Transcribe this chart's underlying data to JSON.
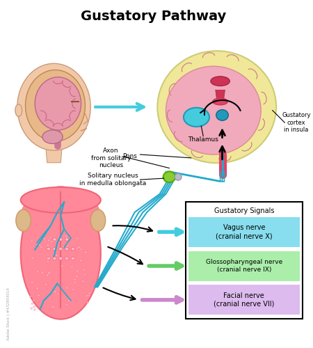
{
  "title": "Gustatory Pathway",
  "title_fontsize": 14,
  "background_color": "#ffffff",
  "labels": {
    "axon": "Axon\nfrom solitary\nnucleus",
    "pons": "Pons",
    "solitary": "Solitary nucleus\nin medulla oblongata",
    "thalamus": "Thalamus",
    "gustatory_cortex": "Gustatory\ncortex\nin insula",
    "gustatory_signals": "Gustatory Signals",
    "vagus": "Vagus nerve\n(cranial nerve X)",
    "glosso": "Glossopharyngeal nerve\n(cranial nerve IX)",
    "facial": "Facial nerve\n(cranial nerve VII)"
  },
  "colors": {
    "skin": "#f2c9a8",
    "skull": "#e8b888",
    "brain_pink": "#e89aaa",
    "brain_fold": "#cc6688",
    "brain_yellow": "#f0e898",
    "brain_cs_pink": "#f0aabb",
    "thalamus_blue": "#44ccdd",
    "thalamus_dark": "#2299bb",
    "red_structure": "#cc3355",
    "green_nucleus": "#88cc33",
    "cyan_nerve": "#22aacc",
    "light_green": "#aaddaa",
    "light_purple": "#ddaaee",
    "light_cyan": "#aaddee",
    "vagus_box": "#88ddee",
    "glosso_box": "#aaeeaa",
    "facial_box": "#ddbbee",
    "tongue_pink": "#ff8899",
    "tongue_mid": "#ee6677",
    "tongue_tan": "#ddb888",
    "black": "#000000",
    "white": "#ffffff"
  }
}
